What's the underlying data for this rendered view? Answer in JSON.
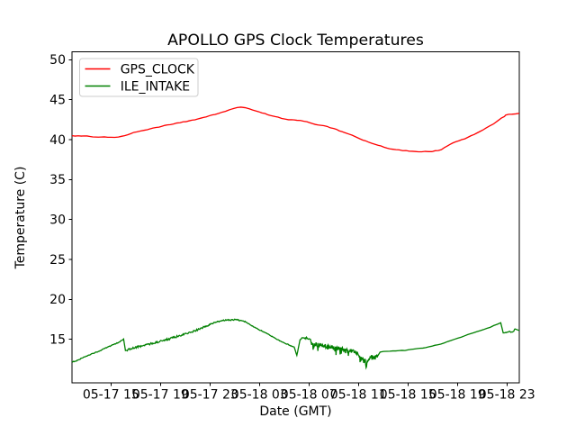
{
  "figure": {
    "background": "#ffffff",
    "axes_color": "#000000",
    "text_color": "#000000",
    "legend_border_color": "#cccccc"
  },
  "chart_data": {
    "type": "line",
    "title": "APOLLO GPS Clock Temperatures",
    "xlabel": "Date (GMT)",
    "ylabel": "Temperature (C)",
    "x_unit": "hours since 05-17 00:00 (GMT)",
    "xlim": [
      11.85,
      48.0
    ],
    "ylim": [
      9.55,
      51.0
    ],
    "grid": false,
    "xticks": {
      "values": [
        15,
        19,
        23,
        27,
        31,
        35,
        39,
        43,
        47
      ],
      "labels": [
        "05-17 15",
        "05-17 19",
        "05-17 23",
        "05-18 03",
        "05-18 07",
        "05-18 11",
        "05-18 15",
        "05-18 19",
        "05-18 23"
      ]
    },
    "yticks": [
      15,
      20,
      25,
      30,
      35,
      40,
      45,
      50
    ],
    "legend": {
      "position": "upper left",
      "entries": [
        "GPS_CLOCK",
        "ILE_INTAKE"
      ]
    },
    "series": [
      {
        "name": "GPS_CLOCK",
        "color": "#ff0000",
        "noise": {
          "default": 0.045,
          "ranges": []
        },
        "points": [
          [
            11.85,
            40.5
          ],
          [
            12.6,
            40.45
          ],
          [
            13.3,
            40.4
          ],
          [
            14.2,
            40.33
          ],
          [
            15.0,
            40.3
          ],
          [
            15.6,
            40.33
          ],
          [
            16.1,
            40.5
          ],
          [
            16.6,
            40.75
          ],
          [
            17.1,
            40.98
          ],
          [
            17.7,
            41.18
          ],
          [
            18.4,
            41.45
          ],
          [
            19.13,
            41.68
          ],
          [
            19.8,
            41.88
          ],
          [
            20.58,
            42.12
          ],
          [
            21.3,
            42.35
          ],
          [
            22.03,
            42.6
          ],
          [
            22.7,
            42.85
          ],
          [
            23.4,
            43.15
          ],
          [
            24.0,
            43.45
          ],
          [
            24.5,
            43.7
          ],
          [
            24.9,
            43.9
          ],
          [
            25.2,
            44.02
          ],
          [
            25.5,
            44.07
          ],
          [
            25.85,
            44.0
          ],
          [
            26.2,
            43.85
          ],
          [
            26.7,
            43.6
          ],
          [
            27.2,
            43.35
          ],
          [
            27.7,
            43.1
          ],
          [
            28.1,
            42.95
          ],
          [
            28.5,
            42.82
          ],
          [
            28.8,
            42.65
          ],
          [
            29.1,
            42.57
          ],
          [
            29.6,
            42.5
          ],
          [
            30.03,
            42.42
          ],
          [
            30.6,
            42.3
          ],
          [
            31.3,
            42.0
          ],
          [
            32.2,
            41.75
          ],
          [
            33.0,
            41.4
          ],
          [
            33.67,
            41.0
          ],
          [
            34.5,
            40.55
          ],
          [
            35.12,
            40.1
          ],
          [
            35.8,
            39.7
          ],
          [
            36.58,
            39.3
          ],
          [
            37.3,
            38.95
          ],
          [
            38.03,
            38.75
          ],
          [
            39.12,
            38.55
          ],
          [
            39.85,
            38.48
          ],
          [
            40.94,
            38.5
          ],
          [
            41.7,
            38.75
          ],
          [
            42.4,
            39.4
          ],
          [
            43.1,
            39.85
          ],
          [
            43.85,
            40.3
          ],
          [
            44.6,
            40.85
          ],
          [
            45.3,
            41.45
          ],
          [
            45.9,
            41.95
          ],
          [
            46.25,
            42.35
          ],
          [
            46.55,
            42.7
          ],
          [
            46.8,
            42.9
          ],
          [
            46.9,
            43.08
          ],
          [
            47.4,
            43.18
          ],
          [
            48.0,
            43.3
          ]
        ]
      },
      {
        "name": "ILE_INTAKE",
        "color": "#008000",
        "noise": {
          "default": 0.035,
          "ranges": [
            [
              11.85,
              16.02,
              0.05,
              0
            ],
            [
              16.2,
              22.8,
              0.12,
              0
            ],
            [
              22.8,
              23.2,
              0.07,
              0
            ],
            [
              23.2,
              26.2,
              0.08,
              0
            ],
            [
              26.2,
              30.25,
              0.05,
              0
            ],
            [
              30.28,
              31.12,
              0.12,
              0
            ],
            [
              31.22,
              36.65,
              0.28,
              -0.8
            ],
            [
              36.75,
              38.5,
              0.035,
              0
            ],
            [
              46.7,
              47.6,
              0.08,
              0
            ]
          ]
        },
        "points": [
          [
            11.85,
            12.2
          ],
          [
            12.15,
            12.27
          ],
          [
            13.0,
            12.9
          ],
          [
            14.0,
            13.5
          ],
          [
            15.0,
            14.2
          ],
          [
            15.6,
            14.6
          ],
          [
            16.02,
            15.04
          ],
          [
            16.17,
            13.6
          ],
          [
            16.94,
            13.95
          ],
          [
            17.67,
            14.25
          ],
          [
            19.13,
            14.8
          ],
          [
            20.58,
            15.45
          ],
          [
            22.03,
            16.2
          ],
          [
            23.12,
            16.95
          ],
          [
            23.85,
            17.3
          ],
          [
            24.4,
            17.42
          ],
          [
            25.1,
            17.45
          ],
          [
            25.55,
            17.35
          ],
          [
            25.9,
            17.15
          ],
          [
            26.75,
            16.4
          ],
          [
            27.5,
            15.8
          ],
          [
            28.2,
            15.2
          ],
          [
            28.94,
            14.6
          ],
          [
            29.45,
            14.25
          ],
          [
            29.8,
            14.05
          ],
          [
            30.02,
            13.0
          ],
          [
            30.28,
            14.95
          ],
          [
            30.55,
            15.18
          ],
          [
            30.85,
            15.15
          ],
          [
            31.05,
            15.05
          ],
          [
            31.12,
            15.0
          ],
          [
            31.22,
            14.3
          ],
          [
            31.6,
            14.35
          ],
          [
            32.2,
            14.15
          ],
          [
            32.6,
            14.2
          ],
          [
            32.7,
            13.95
          ],
          [
            33.4,
            13.9
          ],
          [
            34.0,
            13.7
          ],
          [
            34.4,
            13.5
          ],
          [
            34.95,
            13.2
          ],
          [
            35.1,
            12.95
          ],
          [
            35.25,
            12.5
          ],
          [
            35.35,
            12.75
          ],
          [
            35.45,
            12.1
          ],
          [
            35.55,
            12.55
          ],
          [
            35.62,
            11.45
          ],
          [
            35.72,
            12.3
          ],
          [
            35.85,
            12.6
          ],
          [
            36.0,
            12.75
          ],
          [
            36.3,
            12.8
          ],
          [
            36.55,
            12.9
          ],
          [
            36.75,
            13.4
          ],
          [
            37.3,
            13.5
          ],
          [
            38.0,
            13.55
          ],
          [
            38.76,
            13.6
          ],
          [
            40.2,
            13.9
          ],
          [
            41.65,
            14.4
          ],
          [
            42.75,
            15.0
          ],
          [
            43.6,
            15.45
          ],
          [
            44.55,
            15.95
          ],
          [
            45.65,
            16.5
          ],
          [
            46.5,
            17.07
          ],
          [
            46.7,
            15.8
          ],
          [
            47.0,
            15.9
          ],
          [
            47.55,
            16.0
          ],
          [
            47.65,
            16.3
          ],
          [
            48.0,
            16.1
          ]
        ]
      }
    ]
  }
}
